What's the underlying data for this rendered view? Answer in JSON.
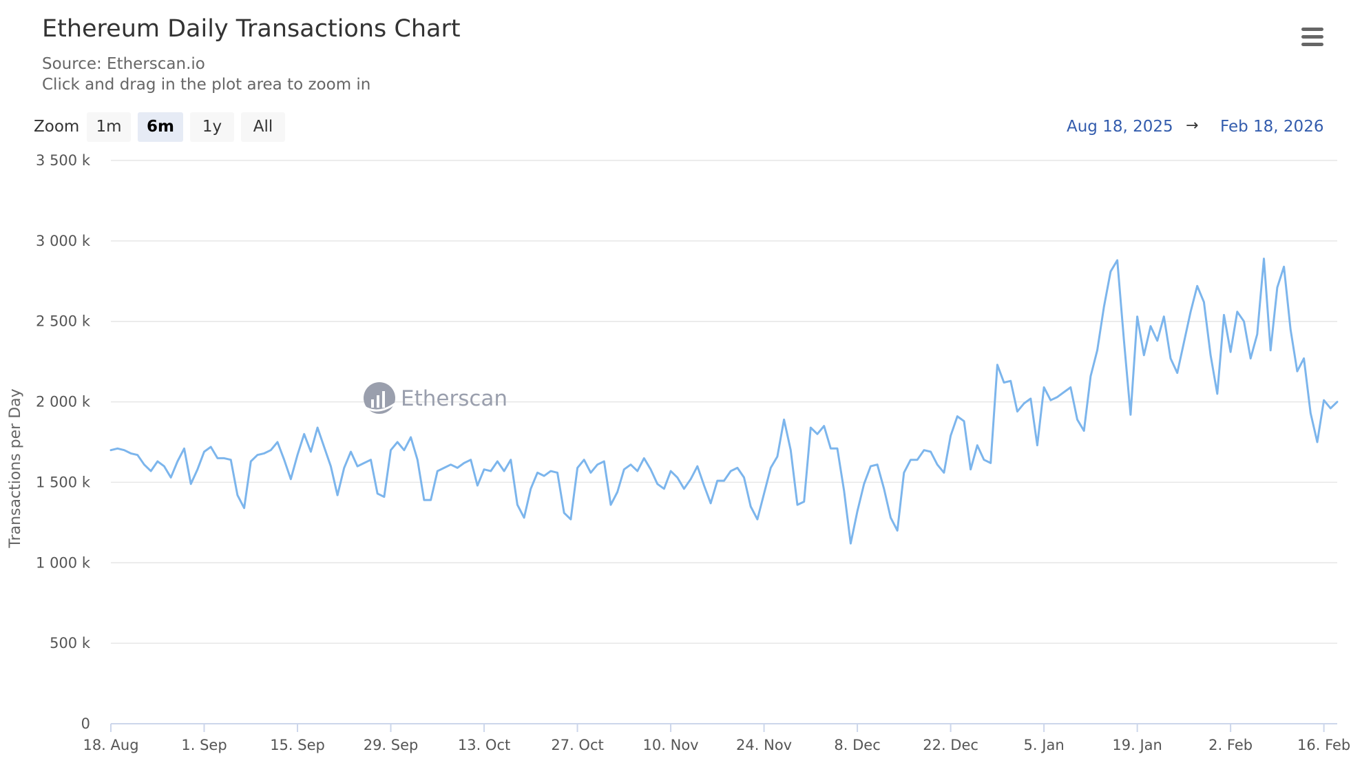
{
  "header": {
    "title": "Ethereum Daily Transactions Chart",
    "subtitle": "Source: Etherscan.io",
    "instruction": "Click and drag in the plot area to zoom in"
  },
  "menu": {
    "icon": "hamburger-menu-icon"
  },
  "zoom": {
    "label": "Zoom",
    "buttons": [
      "1m",
      "6m",
      "1y",
      "All"
    ],
    "active": "6m"
  },
  "range": {
    "from": "Aug 18, 2025",
    "arrow": "→",
    "to": "Feb 18, 2026"
  },
  "watermark": {
    "text": "Etherscan",
    "icon": "etherscan-logo-icon"
  },
  "colors": {
    "line": "#7cb5ec",
    "grid": "#e6e6e6",
    "axis_line": "#ccd6eb",
    "range_text": "#335cad",
    "active_button": "#e6ebf5"
  },
  "chart_data": {
    "type": "line",
    "title": "Ethereum Daily Transactions Chart",
    "subtitle": "Source: Etherscan.io",
    "ylabel": "Transactions per Day",
    "xlabel": "",
    "ylim": [
      0,
      3500000
    ],
    "yticks": [
      0,
      500000,
      1000000,
      1500000,
      2000000,
      2500000,
      3000000,
      3500000
    ],
    "ytick_labels": [
      "0",
      "500 k",
      "1 000 k",
      "1 500 k",
      "2 000 k",
      "2 500 k",
      "3 000 k",
      "3 500 k"
    ],
    "xlim": [
      "2025-08-18",
      "2026-02-18"
    ],
    "xtick_dates": [
      "2025-08-18",
      "2025-09-01",
      "2025-09-15",
      "2025-09-29",
      "2025-10-13",
      "2025-10-27",
      "2025-11-10",
      "2025-11-24",
      "2025-12-08",
      "2025-12-22",
      "2026-01-05",
      "2026-01-19",
      "2026-02-02",
      "2026-02-16"
    ],
    "xtick_labels": [
      "18. Aug",
      "1. Sep",
      "15. Sep",
      "29. Sep",
      "13. Oct",
      "27. Oct",
      "10. Nov",
      "24. Nov",
      "8. Dec",
      "22. Dec",
      "5. Jan",
      "19. Jan",
      "2. Feb",
      "16. Feb"
    ],
    "grid": true,
    "legend": "none",
    "series": [
      {
        "color": "#7cb5ec",
        "x_start": "2025-08-18",
        "x_step": "1 day",
        "values": [
          1700000,
          1710000,
          1700000,
          1680000,
          1670000,
          1610000,
          1570000,
          1630000,
          1600000,
          1530000,
          1630000,
          1710000,
          1490000,
          1580000,
          1690000,
          1720000,
          1650000,
          1650000,
          1640000,
          1420000,
          1340000,
          1630000,
          1670000,
          1680000,
          1700000,
          1750000,
          1640000,
          1520000,
          1670000,
          1800000,
          1690000,
          1840000,
          1720000,
          1600000,
          1420000,
          1590000,
          1690000,
          1600000,
          1620000,
          1640000,
          1430000,
          1410000,
          1700000,
          1750000,
          1700000,
          1780000,
          1640000,
          1390000,
          1390000,
          1570000,
          1590000,
          1610000,
          1590000,
          1620000,
          1640000,
          1480000,
          1580000,
          1570000,
          1630000,
          1570000,
          1640000,
          1360000,
          1280000,
          1460000,
          1560000,
          1540000,
          1570000,
          1560000,
          1310000,
          1270000,
          1590000,
          1640000,
          1560000,
          1610000,
          1630000,
          1360000,
          1440000,
          1580000,
          1610000,
          1570000,
          1650000,
          1580000,
          1490000,
          1460000,
          1570000,
          1530000,
          1460000,
          1520000,
          1600000,
          1480000,
          1370000,
          1510000,
          1510000,
          1570000,
          1590000,
          1530000,
          1350000,
          1270000,
          1430000,
          1590000,
          1660000,
          1890000,
          1700000,
          1360000,
          1380000,
          1840000,
          1800000,
          1850000,
          1710000,
          1710000,
          1450000,
          1120000,
          1320000,
          1490000,
          1600000,
          1610000,
          1460000,
          1280000,
          1200000,
          1560000,
          1640000,
          1640000,
          1700000,
          1690000,
          1610000,
          1560000,
          1790000,
          1910000,
          1880000,
          1580000,
          1730000,
          1640000,
          1620000,
          2230000,
          2120000,
          2130000,
          1940000,
          1990000,
          2020000,
          1730000,
          2090000,
          2010000,
          2030000,
          2060000,
          2090000,
          1890000,
          1820000,
          2160000,
          2320000,
          2590000,
          2810000,
          2880000,
          2380000,
          1920000,
          2530000,
          2290000,
          2470000,
          2380000,
          2530000,
          2270000,
          2180000,
          2370000,
          2560000,
          2720000,
          2620000,
          2290000,
          2050000,
          2540000,
          2310000,
          2560000,
          2500000,
          2270000,
          2420000,
          2890000,
          2320000,
          2710000,
          2840000,
          2450000,
          2190000,
          2270000,
          1930000,
          1750000,
          2010000,
          1960000,
          2000000
        ]
      }
    ]
  }
}
